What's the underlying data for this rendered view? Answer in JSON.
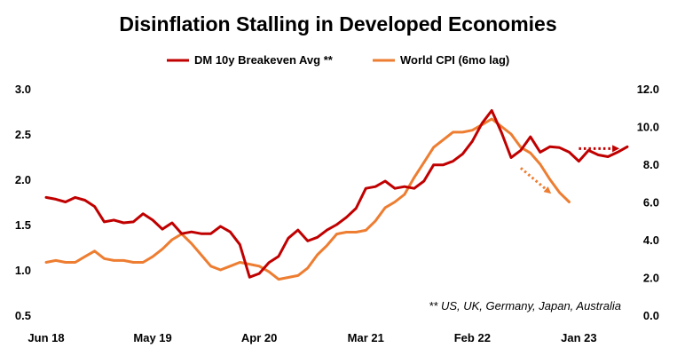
{
  "chart_data": {
    "type": "line",
    "title": "Disinflation Stalling in Developed Economies",
    "legend_position": "top",
    "grid": false,
    "x_tick_labels": [
      "Jun 18",
      "May 19",
      "Apr 20",
      "Mar 21",
      "Feb 22",
      "Jan 23"
    ],
    "x_tick_months": [
      "2018-06",
      "2019-05",
      "2020-04",
      "2021-03",
      "2022-02",
      "2023-01"
    ],
    "y_left": {
      "ticks": [
        "0.5",
        "1.0",
        "1.5",
        "2.0",
        "2.5",
        "3.0"
      ],
      "range": [
        0.5,
        3.0
      ]
    },
    "y_right": {
      "ticks": [
        "0.0",
        "2.0",
        "4.0",
        "6.0",
        "8.0",
        "10.0",
        "12.0"
      ],
      "range": [
        0,
        12
      ]
    },
    "annotation": "** US, UK, Germany, Japan, Australia",
    "series": [
      {
        "name": "DM 10y Breakeven Avg **",
        "axis": "left",
        "color": "#C00000",
        "points": [
          [
            "2018-06",
            1.8
          ],
          [
            "2018-07",
            1.78
          ],
          [
            "2018-08",
            1.75
          ],
          [
            "2018-09",
            1.8
          ],
          [
            "2018-10",
            1.77
          ],
          [
            "2018-11",
            1.7
          ],
          [
            "2018-12",
            1.53
          ],
          [
            "2019-01",
            1.55
          ],
          [
            "2019-02",
            1.52
          ],
          [
            "2019-03",
            1.53
          ],
          [
            "2019-04",
            1.62
          ],
          [
            "2019-05",
            1.55
          ],
          [
            "2019-06",
            1.45
          ],
          [
            "2019-07",
            1.52
          ],
          [
            "2019-08",
            1.4
          ],
          [
            "2019-09",
            1.42
          ],
          [
            "2019-10",
            1.4
          ],
          [
            "2019-11",
            1.4
          ],
          [
            "2019-12",
            1.48
          ],
          [
            "2020-01",
            1.42
          ],
          [
            "2020-02",
            1.28
          ],
          [
            "2020-03",
            0.92
          ],
          [
            "2020-04",
            0.96
          ],
          [
            "2020-05",
            1.08
          ],
          [
            "2020-06",
            1.15
          ],
          [
            "2020-07",
            1.35
          ],
          [
            "2020-08",
            1.44
          ],
          [
            "2020-09",
            1.32
          ],
          [
            "2020-10",
            1.36
          ],
          [
            "2020-11",
            1.44
          ],
          [
            "2020-12",
            1.5
          ],
          [
            "2021-01",
            1.58
          ],
          [
            "2021-02",
            1.68
          ],
          [
            "2021-03",
            1.9
          ],
          [
            "2021-04",
            1.92
          ],
          [
            "2021-05",
            1.98
          ],
          [
            "2021-06",
            1.9
          ],
          [
            "2021-07",
            1.92
          ],
          [
            "2021-08",
            1.9
          ],
          [
            "2021-09",
            1.98
          ],
          [
            "2021-10",
            2.16
          ],
          [
            "2021-11",
            2.16
          ],
          [
            "2021-12",
            2.2
          ],
          [
            "2022-01",
            2.28
          ],
          [
            "2022-02",
            2.42
          ],
          [
            "2022-03",
            2.62
          ],
          [
            "2022-04",
            2.76
          ],
          [
            "2022-05",
            2.52
          ],
          [
            "2022-06",
            2.24
          ],
          [
            "2022-07",
            2.32
          ],
          [
            "2022-08",
            2.47
          ],
          [
            "2022-09",
            2.3
          ],
          [
            "2022-10",
            2.36
          ],
          [
            "2022-11",
            2.35
          ],
          [
            "2022-12",
            2.3
          ],
          [
            "2023-01",
            2.2
          ],
          [
            "2023-02",
            2.32
          ],
          [
            "2023-03",
            2.27
          ],
          [
            "2023-04",
            2.25
          ],
          [
            "2023-05",
            2.3
          ],
          [
            "2023-06",
            2.36
          ]
        ]
      },
      {
        "name": "World CPI (6mo lag)",
        "axis": "right",
        "color": "#ED7D31",
        "points": [
          [
            "2018-06",
            2.8
          ],
          [
            "2018-07",
            2.9
          ],
          [
            "2018-08",
            2.8
          ],
          [
            "2018-09",
            2.8
          ],
          [
            "2018-10",
            3.1
          ],
          [
            "2018-11",
            3.4
          ],
          [
            "2018-12",
            3.0
          ],
          [
            "2019-01",
            2.9
          ],
          [
            "2019-02",
            2.9
          ],
          [
            "2019-03",
            2.8
          ],
          [
            "2019-04",
            2.8
          ],
          [
            "2019-05",
            3.1
          ],
          [
            "2019-06",
            3.5
          ],
          [
            "2019-07",
            4.0
          ],
          [
            "2019-08",
            4.3
          ],
          [
            "2019-09",
            3.8
          ],
          [
            "2019-10",
            3.2
          ],
          [
            "2019-11",
            2.6
          ],
          [
            "2019-12",
            2.4
          ],
          [
            "2020-01",
            2.6
          ],
          [
            "2020-02",
            2.8
          ],
          [
            "2020-03",
            2.7
          ],
          [
            "2020-04",
            2.6
          ],
          [
            "2020-05",
            2.3
          ],
          [
            "2020-06",
            1.9
          ],
          [
            "2020-07",
            2.0
          ],
          [
            "2020-08",
            2.1
          ],
          [
            "2020-09",
            2.5
          ],
          [
            "2020-10",
            3.2
          ],
          [
            "2020-11",
            3.7
          ],
          [
            "2020-12",
            4.3
          ],
          [
            "2021-01",
            4.4
          ],
          [
            "2021-02",
            4.4
          ],
          [
            "2021-03",
            4.5
          ],
          [
            "2021-04",
            5.0
          ],
          [
            "2021-05",
            5.7
          ],
          [
            "2021-06",
            6.0
          ],
          [
            "2021-07",
            6.4
          ],
          [
            "2021-08",
            7.3
          ],
          [
            "2021-09",
            8.1
          ],
          [
            "2021-10",
            8.9
          ],
          [
            "2021-11",
            9.3
          ],
          [
            "2021-12",
            9.7
          ],
          [
            "2022-01",
            9.7
          ],
          [
            "2022-02",
            9.8
          ],
          [
            "2022-03",
            10.1
          ],
          [
            "2022-04",
            10.4
          ],
          [
            "2022-05",
            10.0
          ],
          [
            "2022-06",
            9.6
          ],
          [
            "2022-07",
            8.9
          ],
          [
            "2022-08",
            8.6
          ],
          [
            "2022-09",
            8.0
          ],
          [
            "2022-10",
            7.2
          ],
          [
            "2022-11",
            6.5
          ],
          [
            "2022-12",
            6.0
          ]
        ]
      }
    ],
    "arrows": [
      {
        "color": "#C00000",
        "from": [
          "2023-01",
          2.34
        ],
        "to": [
          "2023-05",
          2.34
        ],
        "axis": "left"
      },
      {
        "color": "#ED7D31",
        "from": [
          "2022-07",
          7.8
        ],
        "to": [
          "2022-10",
          6.5
        ],
        "axis": "right"
      }
    ]
  }
}
